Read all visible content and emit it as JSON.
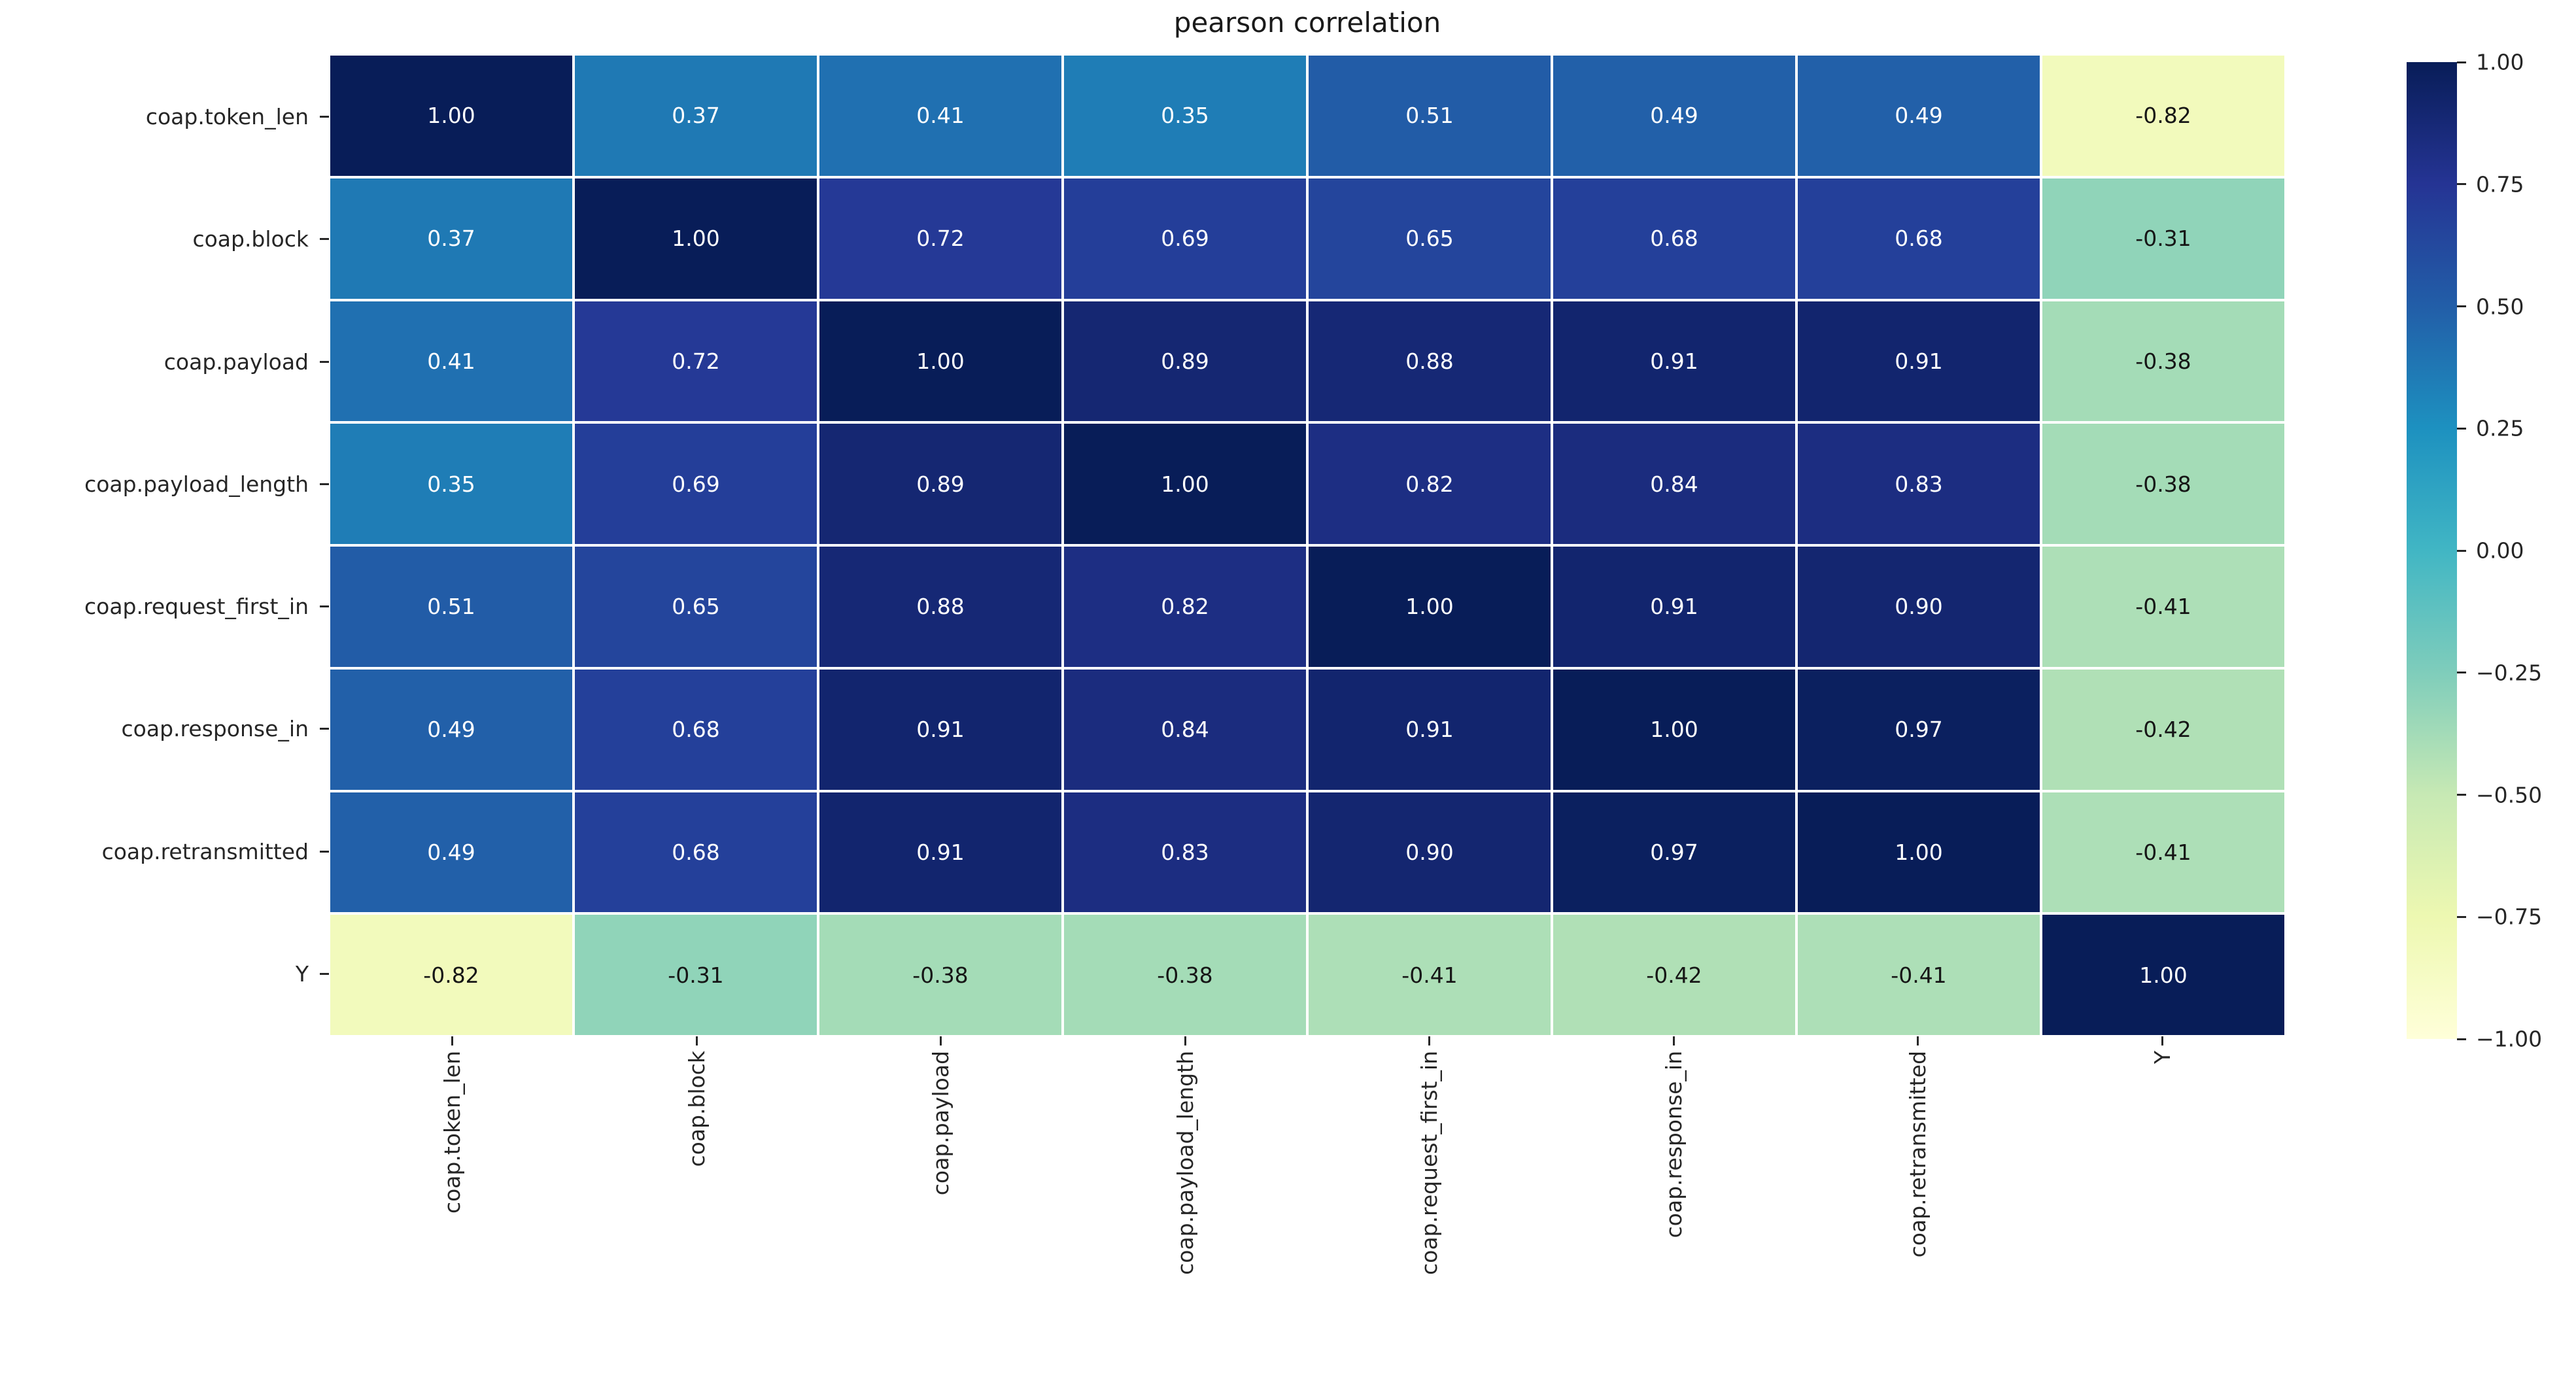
{
  "title": "pearson correlation",
  "chart_data": {
    "type": "heatmap",
    "categories": [
      "coap.token_len",
      "coap.block",
      "coap.payload",
      "coap.payload_length",
      "coap.request_first_in",
      "coap.response_in",
      "coap.retransmitted",
      "Y"
    ],
    "matrix": [
      [
        1.0,
        0.37,
        0.41,
        0.35,
        0.51,
        0.49,
        0.49,
        -0.82
      ],
      [
        0.37,
        1.0,
        0.72,
        0.69,
        0.65,
        0.68,
        0.68,
        -0.31
      ],
      [
        0.41,
        0.72,
        1.0,
        0.89,
        0.88,
        0.91,
        0.91,
        -0.38
      ],
      [
        0.35,
        0.69,
        0.89,
        1.0,
        0.82,
        0.84,
        0.83,
        -0.38
      ],
      [
        0.51,
        0.65,
        0.88,
        0.82,
        1.0,
        0.91,
        0.9,
        -0.41
      ],
      [
        0.49,
        0.68,
        0.91,
        0.84,
        0.91,
        1.0,
        0.97,
        -0.42
      ],
      [
        0.49,
        0.68,
        0.91,
        0.83,
        0.9,
        0.97,
        1.0,
        -0.41
      ],
      [
        -0.82,
        -0.31,
        -0.38,
        -0.38,
        -0.41,
        -0.42,
        -0.41,
        1.0
      ]
    ],
    "vmin": -1,
    "vmax": 1,
    "colormap": "YlGnBu",
    "colormap_anchors": [
      "#ffffd9",
      "#edf8b1",
      "#c7e9b4",
      "#7fcdbb",
      "#41b6c4",
      "#1d91c0",
      "#225ea8",
      "#253494",
      "#081d58"
    ],
    "colorbar_ticks": [
      "1.00",
      "0.75",
      "0.50",
      "0.25",
      "0.00",
      "−0.25",
      "−0.50",
      "−0.75",
      "−1.00"
    ],
    "legend_position": "right",
    "grid": false,
    "colors": {
      "tick_label": "#262626",
      "title": "#1a1a1a",
      "annot_light": "#ffffff",
      "annot_dark": "#161616",
      "gridline": "#ffffff"
    }
  }
}
